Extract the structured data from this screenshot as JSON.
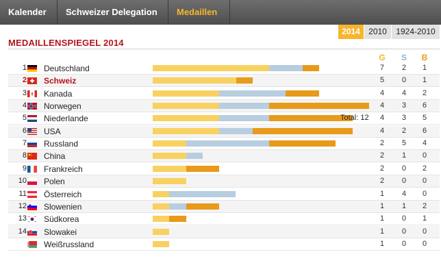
{
  "nav": {
    "tabs": [
      "Kalender",
      "Schweizer Delegation",
      "Medaillen"
    ]
  },
  "years": [
    "2014",
    "2010",
    "1924-2010"
  ],
  "title": "MEDAILLENSPIEGEL 2014",
  "headers": {
    "g": "G",
    "s": "S",
    "b": "B"
  },
  "colors": {
    "gold": "#f8d161",
    "silver": "#b7cde0",
    "bronze": "#e89a1a",
    "accent": "#f7b52c",
    "title": "#b4151e"
  },
  "rows": [
    {
      "rank": "1.",
      "country": "Deutschland",
      "flag": "de",
      "g": "7",
      "s": "2",
      "b": "1"
    },
    {
      "rank": "2.",
      "country": "Schweiz",
      "flag": "ch",
      "g": "5",
      "s": "0",
      "b": "1"
    },
    {
      "rank": "3.",
      "country": "Kanada",
      "flag": "ca",
      "g": "4",
      "s": "4",
      "b": "2"
    },
    {
      "rank": "4.",
      "country": "Norwegen",
      "flag": "no",
      "g": "4",
      "s": "3",
      "b": "6"
    },
    {
      "rank": "5.",
      "country": "Niederlande",
      "flag": "nl",
      "g": "4",
      "s": "3",
      "b": "5",
      "total": "Total: 12"
    },
    {
      "rank": "6.",
      "country": "USA",
      "flag": "us",
      "g": "4",
      "s": "2",
      "b": "6"
    },
    {
      "rank": "7.",
      "country": "Russland",
      "flag": "ru",
      "g": "2",
      "s": "5",
      "b": "4"
    },
    {
      "rank": "8.",
      "country": "China",
      "flag": "cn",
      "g": "2",
      "s": "1",
      "b": "0"
    },
    {
      "rank": "9.",
      "country": "Frankreich",
      "flag": "fr",
      "g": "2",
      "s": "0",
      "b": "2"
    },
    {
      "rank": "10.",
      "country": "Polen",
      "flag": "pl",
      "g": "2",
      "s": "0",
      "b": "0"
    },
    {
      "rank": "11.",
      "country": "Österreich",
      "flag": "at",
      "g": "1",
      "s": "4",
      "b": "0"
    },
    {
      "rank": "12.",
      "country": "Slowenien",
      "flag": "si",
      "g": "1",
      "s": "1",
      "b": "2"
    },
    {
      "rank": "13.",
      "country": "Südkorea",
      "flag": "kr",
      "g": "1",
      "s": "0",
      "b": "1"
    },
    {
      "rank": "14.",
      "country": "Slowakei",
      "flag": "sk",
      "g": "1",
      "s": "0",
      "b": "0"
    },
    {
      "rank": "",
      "country": "Weißrussland",
      "flag": "by",
      "g": "1",
      "s": "0",
      "b": "0"
    }
  ]
}
